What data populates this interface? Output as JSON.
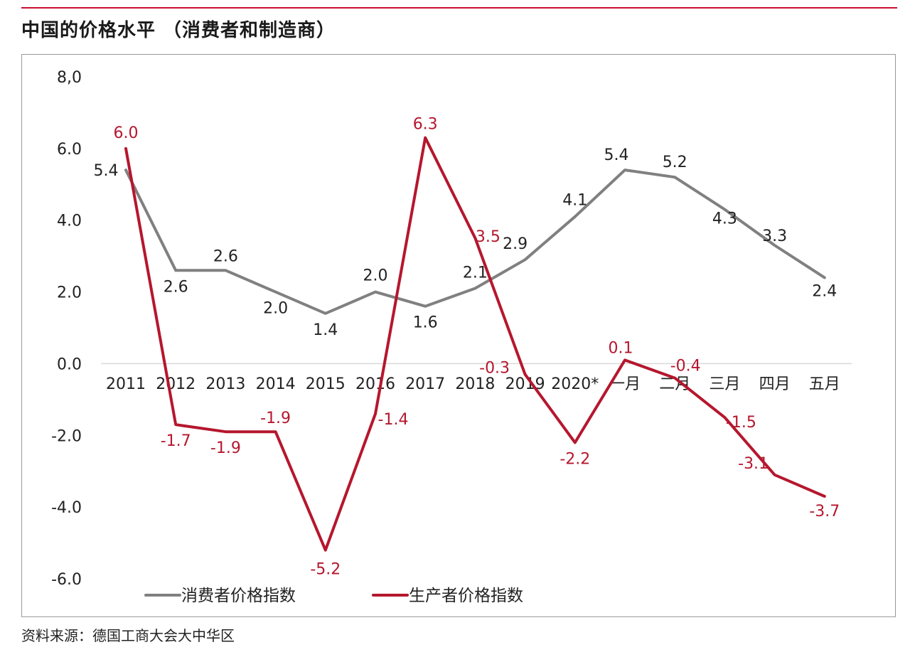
{
  "header": {
    "title": "中国的价格水平 （消费者和制造商）"
  },
  "footer": {
    "source": "资料来源：德国工商大会大中华区"
  },
  "colors": {
    "accent": "#c8102e",
    "cpi": "#808080",
    "ppi": "#b5172e",
    "text": "#222222"
  },
  "chart_data": {
    "type": "line",
    "categories": [
      "2011",
      "2012",
      "2013",
      "2014",
      "2015",
      "2016",
      "2017",
      "2018",
      "2019",
      "2020*",
      "一月",
      "二月",
      "三月",
      "四月",
      "五月"
    ],
    "y_tick_labels": [
      "8,0",
      "6.0",
      "4.0",
      "2.0",
      "0.0",
      "-2.0",
      "-4.0",
      "-6.0"
    ],
    "y_ticks": [
      8,
      6,
      4,
      2,
      0,
      -2,
      -4,
      -6
    ],
    "ylim": [
      -6,
      8
    ],
    "grid": false,
    "legend_position": "bottom-left",
    "series": [
      {
        "name": "消费者价格指数",
        "values": [
          5.4,
          2.6,
          2.6,
          2.0,
          1.4,
          2.0,
          1.6,
          2.1,
          2.9,
          4.1,
          5.4,
          5.2,
          4.3,
          3.3,
          2.4
        ],
        "labels": [
          "5.4",
          "2.6",
          "2.6",
          "2.0",
          "1.4",
          "2.0",
          "1.6",
          "2.1",
          "2.9",
          "4.1",
          "5.4",
          "5.2",
          "4.3",
          "3.3",
          "2.4"
        ]
      },
      {
        "name": "生产者价格指数",
        "values": [
          6.0,
          -1.7,
          -1.9,
          -1.9,
          -5.2,
          -1.4,
          6.3,
          3.5,
          -0.3,
          -2.2,
          0.1,
          -0.4,
          -1.5,
          -3.1,
          -3.7
        ],
        "labels": [
          "6.0",
          "-1.7",
          "-1.9",
          "-1.9",
          "-5.2",
          "-1.4",
          "6.3",
          "3.5",
          "-0.3",
          "-2.2",
          "0.1",
          "-0.4",
          "-1.5",
          "-3.1",
          "-3.7"
        ]
      }
    ]
  }
}
